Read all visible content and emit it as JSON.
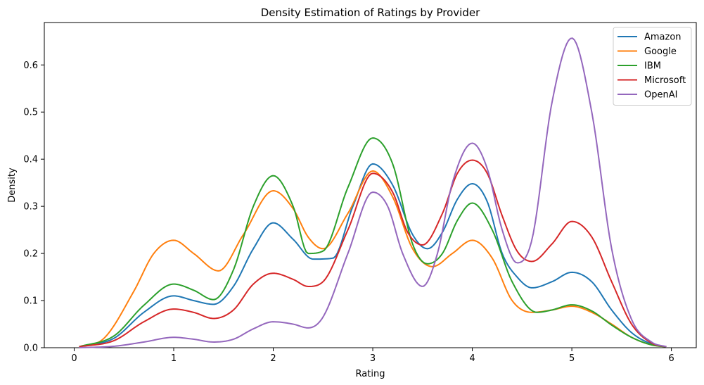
{
  "chart_data": {
    "type": "line",
    "title": "Density Estimation of Ratings by Provider",
    "xlabel": "Rating",
    "ylabel": "Density",
    "xlim": [
      -0.3,
      6.25
    ],
    "ylim": [
      0,
      0.69
    ],
    "xticks": [
      0,
      1,
      2,
      3,
      4,
      5,
      6
    ],
    "yticks": [
      0.0,
      0.1,
      0.2,
      0.3,
      0.4,
      0.5,
      0.6
    ],
    "ytick_labels": [
      "0.0",
      "0.1",
      "0.2",
      "0.3",
      "0.4",
      "0.5",
      "0.6"
    ],
    "grid": false,
    "legend_position": "top-right",
    "x_range": [
      0.05,
      5.95
    ],
    "series": [
      {
        "name": "Amazon",
        "color": "#1f77b4",
        "x": [
          0.05,
          0.4,
          0.7,
          1,
          1.2,
          1.4,
          1.6,
          1.8,
          2,
          2.2,
          2.4,
          2.6,
          2.8,
          3,
          3.2,
          3.4,
          3.55,
          3.7,
          3.85,
          4,
          4.15,
          4.3,
          4.45,
          4.6,
          4.8,
          5,
          5.2,
          5.4,
          5.6,
          5.8,
          5.95
        ],
        "y": [
          0.002,
          0.02,
          0.075,
          0.11,
          0.1,
          0.092,
          0.13,
          0.21,
          0.265,
          0.23,
          0.188,
          0.19,
          0.3,
          0.39,
          0.345,
          0.24,
          0.21,
          0.245,
          0.315,
          0.348,
          0.31,
          0.2,
          0.15,
          0.127,
          0.14,
          0.16,
          0.14,
          0.08,
          0.032,
          0.008,
          0.002
        ]
      },
      {
        "name": "Google",
        "color": "#ff7f0e",
        "x": [
          0.05,
          0.3,
          0.6,
          0.8,
          1,
          1.2,
          1.45,
          1.7,
          2,
          2.2,
          2.35,
          2.5,
          2.75,
          3,
          3.2,
          3.4,
          3.6,
          3.8,
          4,
          4.2,
          4.4,
          4.6,
          4.8,
          5,
          5.2,
          5.4,
          5.6,
          5.8,
          5.95
        ],
        "y": [
          0.002,
          0.02,
          0.12,
          0.2,
          0.228,
          0.2,
          0.163,
          0.24,
          0.333,
          0.295,
          0.235,
          0.21,
          0.285,
          0.375,
          0.32,
          0.21,
          0.172,
          0.2,
          0.228,
          0.19,
          0.1,
          0.075,
          0.08,
          0.088,
          0.075,
          0.05,
          0.022,
          0.006,
          0.002
        ]
      },
      {
        "name": "IBM",
        "color": "#2ca02c",
        "x": [
          0.05,
          0.4,
          0.7,
          1,
          1.2,
          1.4,
          1.6,
          1.8,
          2,
          2.2,
          2.35,
          2.5,
          2.75,
          3,
          3.2,
          3.4,
          3.55,
          3.7,
          3.85,
          4,
          4.2,
          4.4,
          4.65,
          4.8,
          5,
          5.2,
          5.4,
          5.6,
          5.8,
          5.95
        ],
        "y": [
          0.002,
          0.025,
          0.09,
          0.135,
          0.122,
          0.102,
          0.165,
          0.3,
          0.365,
          0.3,
          0.2,
          0.205,
          0.34,
          0.445,
          0.39,
          0.22,
          0.178,
          0.2,
          0.27,
          0.307,
          0.25,
          0.14,
          0.075,
          0.08,
          0.091,
          0.078,
          0.048,
          0.022,
          0.006,
          0.002
        ]
      },
      {
        "name": "Microsoft",
        "color": "#d62728",
        "x": [
          0.05,
          0.4,
          0.7,
          1,
          1.2,
          1.4,
          1.6,
          1.8,
          2,
          2.2,
          2.35,
          2.5,
          2.75,
          3,
          3.2,
          3.35,
          3.5,
          3.7,
          3.85,
          4,
          4.15,
          4.3,
          4.45,
          4.6,
          4.8,
          5,
          5.2,
          5.4,
          5.6,
          5.8,
          5.95
        ],
        "y": [
          0.002,
          0.015,
          0.055,
          0.082,
          0.075,
          0.062,
          0.08,
          0.135,
          0.158,
          0.145,
          0.13,
          0.14,
          0.25,
          0.37,
          0.33,
          0.245,
          0.218,
          0.285,
          0.37,
          0.398,
          0.37,
          0.28,
          0.205,
          0.183,
          0.22,
          0.268,
          0.235,
          0.14,
          0.05,
          0.01,
          0.002
        ]
      },
      {
        "name": "OpenAI",
        "color": "#9467bd",
        "x": [
          0.05,
          0.4,
          0.7,
          1,
          1.2,
          1.4,
          1.6,
          1.8,
          2,
          2.2,
          2.35,
          2.5,
          2.75,
          3,
          3.15,
          3.3,
          3.5,
          3.65,
          3.8,
          4,
          4.15,
          4.3,
          4.45,
          4.6,
          4.8,
          5,
          5.2,
          5.4,
          5.6,
          5.8,
          5.95
        ],
        "y": [
          0,
          0.003,
          0.012,
          0.022,
          0.018,
          0.012,
          0.018,
          0.04,
          0.055,
          0.05,
          0.042,
          0.065,
          0.2,
          0.33,
          0.3,
          0.2,
          0.13,
          0.2,
          0.35,
          0.434,
          0.38,
          0.25,
          0.18,
          0.23,
          0.52,
          0.657,
          0.5,
          0.21,
          0.06,
          0.012,
          0.002
        ]
      }
    ]
  }
}
